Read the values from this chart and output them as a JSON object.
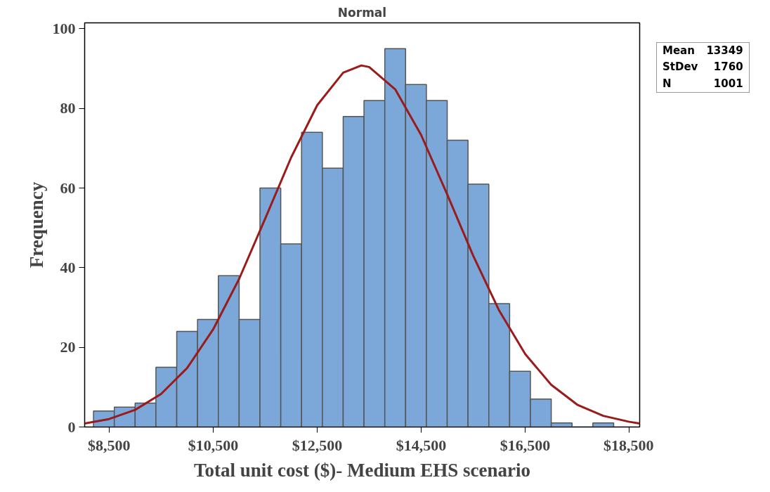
{
  "chart_data": {
    "type": "histogram",
    "title": "Normal",
    "xlabel": "Total unit cost ($)- Medium EHS scenario",
    "ylabel": "Frequency",
    "bins": [
      8200,
      8600,
      9000,
      9400,
      9800,
      10200,
      10600,
      11000,
      11400,
      11800,
      12200,
      12600,
      13000,
      13400,
      13800,
      14200,
      14600,
      15000,
      15400,
      15800,
      16200,
      16600,
      17000,
      17400,
      17800,
      18200
    ],
    "values": [
      4,
      5,
      6,
      15,
      24,
      27,
      38,
      27,
      60,
      46,
      74,
      65,
      78,
      82,
      95,
      86,
      82,
      72,
      61,
      31,
      14,
      7,
      1,
      0,
      1
    ],
    "color": "#7ba7d9",
    "series": [
      {
        "type": "line",
        "color": "#9b1b1b",
        "x": [
          8030,
          8500,
          9000,
          9500,
          10000,
          10500,
          11000,
          11500,
          12000,
          12500,
          13000,
          13349,
          13500,
          14000,
          14500,
          15000,
          15500,
          16000,
          16500,
          17000,
          17500,
          18000,
          18500,
          18700
        ],
        "values": [
          0.9,
          2,
          4.3,
          8.3,
          14.8,
          24.5,
          37.2,
          52.3,
          67.7,
          80.8,
          89,
          90.8,
          90.4,
          84.8,
          73.3,
          58.4,
          43,
          29.2,
          18.3,
          10.6,
          5.6,
          2.8,
          1.3,
          0.9
        ]
      }
    ],
    "xlim": [
      8030,
      18700
    ],
    "xticks": [
      {
        "value": 8500,
        "label": "$8,500"
      },
      {
        "value": 10500,
        "label": "$10,500"
      },
      {
        "value": 12500,
        "label": "$12,500"
      },
      {
        "value": 14500,
        "label": "$14,500"
      },
      {
        "value": 16500,
        "label": "$16,500"
      },
      {
        "value": 18500,
        "label": "$18,500"
      }
    ],
    "ylim": [
      0,
      101.5
    ],
    "yticks": [
      0,
      20,
      40,
      60,
      80,
      100
    ],
    "annotations": [
      "Mean 13349",
      "StDev 1760",
      "N 1001"
    ]
  }
}
